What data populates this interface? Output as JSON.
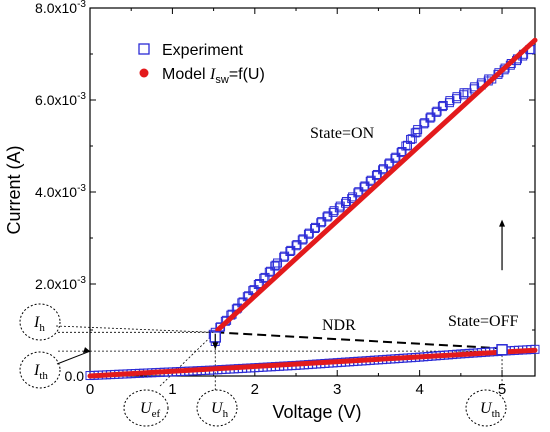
{
  "chart_data": {
    "type": "scatter",
    "xlabel": "Voltage (V)",
    "ylabel": "Current (A)",
    "xlim": [
      0,
      5.4
    ],
    "ylim": [
      0,
      0.008
    ],
    "x_ticks": [
      {
        "value": 0,
        "label": "0"
      },
      {
        "value": 1,
        "label": "1"
      },
      {
        "value": 2,
        "label": "2"
      },
      {
        "value": 3,
        "label": "3"
      },
      {
        "value": 4,
        "label": "4"
      },
      {
        "value": 5,
        "label": "5"
      }
    ],
    "y_ticks": [
      {
        "value": 0,
        "label": "0.0",
        "exp": ""
      },
      {
        "value": 0.002,
        "label": "2.0x10",
        "exp": "-3"
      },
      {
        "value": 0.004,
        "label": "4.0x10",
        "exp": "-3"
      },
      {
        "value": 0.006,
        "label": "6.0x10",
        "exp": "-3"
      },
      {
        "value": 0.008,
        "label": "8.0x10",
        "exp": "-3"
      }
    ],
    "grid": false,
    "legend_position": "top-left",
    "legend": [
      {
        "label": "Experiment",
        "marker": "square",
        "color": "#2b2bd6"
      },
      {
        "label_main": "Model ",
        "label_i": "I",
        "label_sub": "sw",
        "label_rest": "=f(U)",
        "marker": "dot",
        "color": "#e31a1c"
      }
    ],
    "series": [
      {
        "name": "Experiment",
        "style": "hollow-square",
        "color": "#2b2bd6",
        "segments": [
          {
            "x": [
              0.0,
              0.5,
              1.0,
              1.5,
              2.0,
              2.5,
              3.0,
              3.5,
              4.0,
              4.5,
              5.0,
              5.4
            ],
            "y": [
              1e-05,
              5e-05,
              9e-05,
              0.00013,
              0.00018,
              0.00023,
              0.00029,
              0.00035,
              0.00041,
              0.00048,
              0.00054,
              0.00058
            ]
          },
          {
            "x": [
              1.52,
              1.6,
              1.8,
              2.0,
              2.3,
              2.6,
              2.9,
              3.2,
              3.5,
              3.8,
              4.0,
              4.3,
              4.6,
              4.9,
              5.2,
              5.35
            ],
            "y": [
              0.00095,
              0.0011,
              0.0015,
              0.0019,
              0.0025,
              0.003,
              0.0035,
              0.0039,
              0.0044,
              0.0049,
              0.0054,
              0.0059,
              0.0062,
              0.0065,
              0.0069,
              0.0071
            ]
          },
          {
            "x": [
              1.52,
              1.52,
              1.52
            ],
            "y": [
              0.00095,
              0.00085,
              0.00075
            ]
          }
        ]
      },
      {
        "name": "Model Isw=f(U)",
        "style": "thick-line",
        "color": "#e31a1c",
        "segments": [
          {
            "x": [
              0.0,
              5.4
            ],
            "y": [
              0.0,
              0.00056
            ]
          },
          {
            "x": [
              1.55,
              5.4
            ],
            "y": [
              0.001,
              0.0073
            ]
          }
        ]
      }
    ],
    "annotations": {
      "state_on": "State=ON",
      "state_off": "State=OFF",
      "ndr": "NDR",
      "i_h": {
        "main": "I",
        "sub": "h"
      },
      "i_th": {
        "main": "I",
        "sub": "th"
      },
      "u_ef": {
        "main": "U",
        "sub": "ef"
      },
      "u_h": {
        "main": "U",
        "sub": "h"
      },
      "u_th": {
        "main": "U",
        "sub": "th"
      }
    },
    "guides": {
      "ndr_line": {
        "x": [
          1.52,
          5.0
        ],
        "y": [
          0.00095,
          0.0006
        ]
      },
      "i_h_level": 0.00095,
      "i_th_level": 0.00054,
      "u_h": 1.52,
      "u_th": 5.0,
      "u_ef": 0.85,
      "hold_arrow": {
        "x": 1.52,
        "y_from": 0.00092,
        "y_to": 0.00058
      },
      "up_arrow": {
        "x": 5.0,
        "y_from": 0.0023,
        "y_to": 0.0034
      }
    }
  }
}
